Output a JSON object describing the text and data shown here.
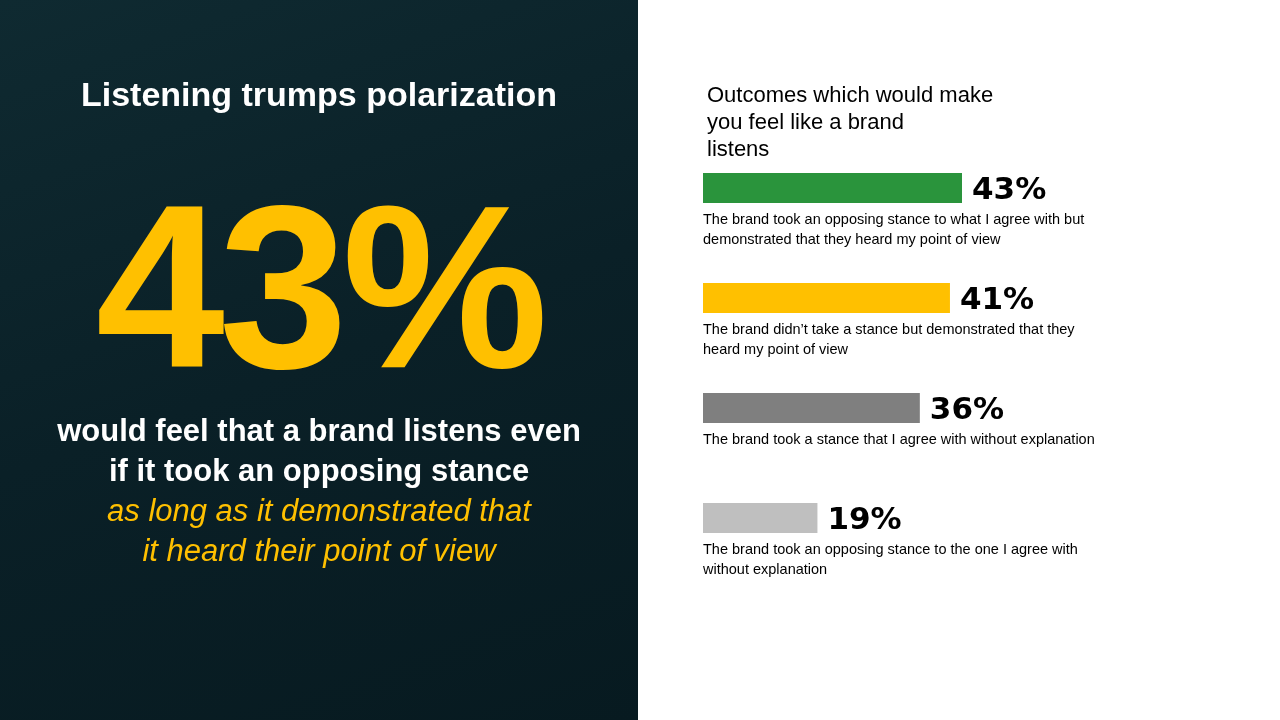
{
  "chart_data": [
    {
      "type": "other",
      "title": "Listening trumps polarization",
      "annotations": [
        "43%",
        "would feel that a brand listens even if it took an opposing stance",
        "as long as it demonstrated that it heard their point of view"
      ]
    },
    {
      "type": "bar",
      "orientation": "horizontal",
      "title": "Outcomes which would make you feel like a brand listens",
      "categories": [
        "The brand took an opposing stance to what I agree with but demonstrated that they heard my point of view",
        "The brand didn’t take a stance but demonstrated that they heard my point of view",
        "The brand took a stance that I agree with without explanation",
        "The brand took an opposing stance to the one I agree with without explanation"
      ],
      "values": [
        43,
        41,
        36,
        19
      ],
      "colors": [
        "#2a943c",
        "#ffc000",
        "#7f7f7f",
        "#bfbfbf"
      ],
      "value_labels": [
        "43%",
        "41%",
        "36%",
        "19%"
      ],
      "xlim": [
        0,
        43
      ],
      "tick_labels": false,
      "grid": false,
      "legend": false
    }
  ]
}
